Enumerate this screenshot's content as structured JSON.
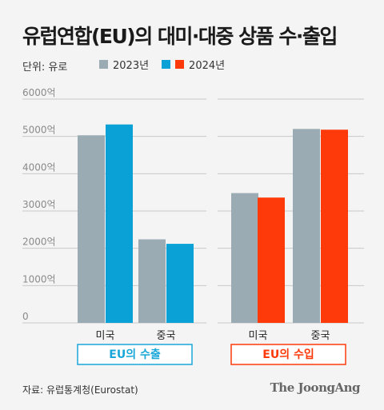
{
  "title": "유럽연합(EU)의 대미·대중 상품 수·출입",
  "unit_label": "단위: 유로",
  "source": "자료: 유럽통계청(Eurostat)",
  "brand": "The JoongAng",
  "colors": {
    "y2023": "#9aabb3",
    "exports_2024": "#0aa2d6",
    "imports_2024": "#ff3a0a",
    "exports_box": "#19a6d8",
    "imports_box": "#ff3a0a",
    "grid": "#c8c8c8",
    "tick_text": "#8a8a8a"
  },
  "chart_data": {
    "type": "bar",
    "yticks": [
      "0",
      "1000억",
      "2000억",
      "3000억",
      "4000억",
      "5000억",
      "6000억"
    ],
    "ylim": [
      0,
      6000
    ],
    "legend": [
      "2023년",
      "2024년"
    ],
    "groups": [
      {
        "name": "EU의 수출",
        "categories": [
          "미국",
          "중국"
        ],
        "series": [
          {
            "name": "2023년",
            "values": [
              5030,
              2240
            ]
          },
          {
            "name": "2024년",
            "values": [
              5320,
              2120
            ]
          }
        ]
      },
      {
        "name": "EU의 수입",
        "categories": [
          "미국",
          "중국"
        ],
        "series": [
          {
            "name": "2023년",
            "values": [
              3480,
              5200
            ]
          },
          {
            "name": "2024년",
            "values": [
              3360,
              5180
            ]
          }
        ]
      }
    ]
  }
}
